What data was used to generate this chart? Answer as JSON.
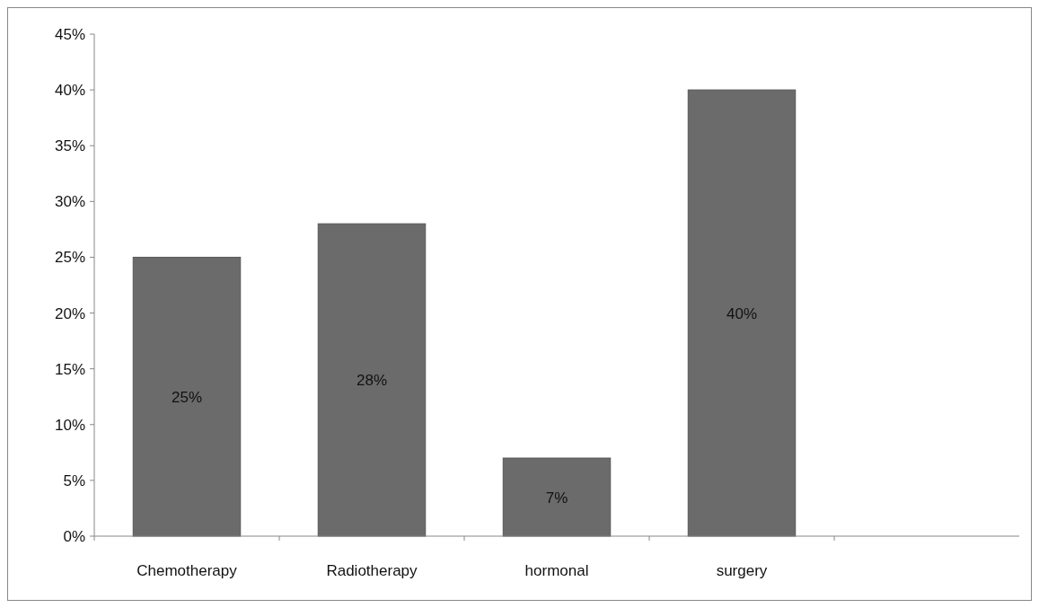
{
  "chart_data": {
    "type": "bar",
    "categories": [
      "Chemotherapy",
      "Radiotherapy",
      "hormonal",
      "surgery",
      null
    ],
    "values": [
      25,
      28,
      7,
      40,
      null
    ],
    "color": "#6b6b6b",
    "value_labels": [
      "25%",
      "28%",
      "7%",
      "40%",
      null
    ],
    "ylim": [
      0,
      45
    ],
    "yticks": [
      {
        "value": 0,
        "label": "0%"
      },
      {
        "value": 5,
        "label": "5%"
      },
      {
        "value": 10,
        "label": "10%"
      },
      {
        "value": 15,
        "label": "15%"
      },
      {
        "value": 20,
        "label": "20%"
      },
      {
        "value": 25,
        "label": "25%"
      },
      {
        "value": 30,
        "label": "30%"
      },
      {
        "value": 35,
        "label": "35%"
      },
      {
        "value": 40,
        "label": "40%"
      },
      {
        "value": 45,
        "label": "45%"
      }
    ],
    "grid": false
  }
}
